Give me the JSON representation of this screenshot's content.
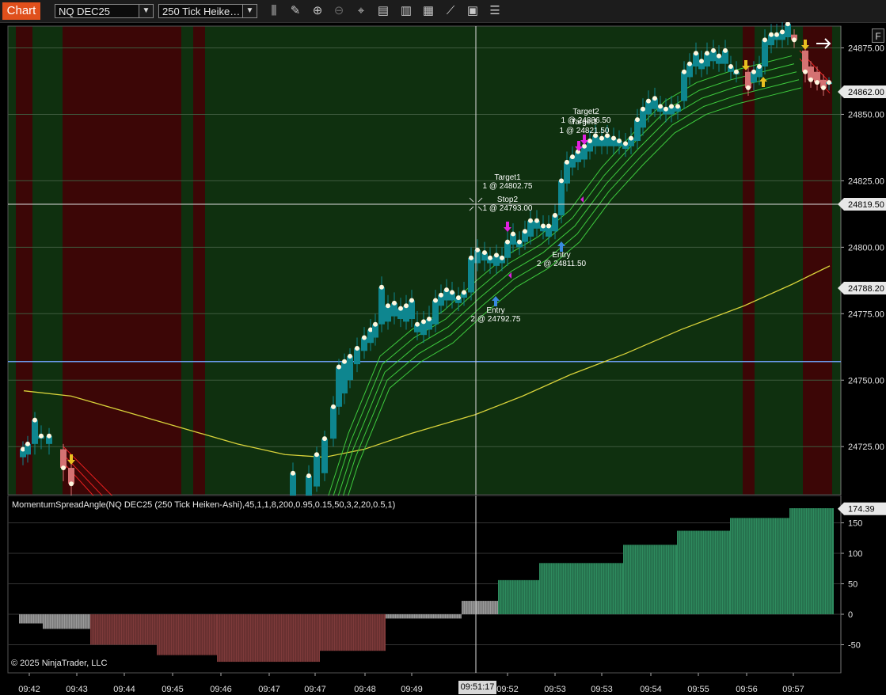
{
  "toolbar": {
    "chart_tab": "Chart",
    "instrument": "NQ DEC25",
    "bar_type": "250 Tick Heike…",
    "icons": [
      "bar-style-icon",
      "draw-tool-icon",
      "zoom-in-icon",
      "zoom-out-icon",
      "crosshair-icon",
      "data-box-icon",
      "indicators-icon",
      "strategies-icon",
      "chart-trader-icon",
      "templates-icon",
      "properties-icon"
    ]
  },
  "colors": {
    "session_green": "#0f300f",
    "session_red": "#3c0606",
    "bull_candle": "#0e868f",
    "bear_candle": "#d47272",
    "ema": "#d8d23a",
    "ribbon": "#3ecb3e",
    "blue_line": "#6c9cf0",
    "osc_bull": "#2e8b5e",
    "osc_bear": "#7e3a3a",
    "osc_neutral": "#9a9a9a"
  },
  "price_axis": {
    "ticks": [
      "24875.00",
      "24850.00",
      "24825.00",
      "24800.00",
      "24775.00",
      "24750.00",
      "24725.00"
    ],
    "last_price": "24862.00",
    "cursor_price": "24819.50",
    "ema_price": "24788.20"
  },
  "time_axis": {
    "ticks": [
      "09:42",
      "09:43",
      "09:44",
      "09:45",
      "09:46",
      "09:47",
      "09:47",
      "09:48",
      "09:49",
      "09:52",
      "09:53",
      "09:53",
      "09:54",
      "09:55",
      "09:56",
      "09:57"
    ],
    "cursor_time": "09:51:17"
  },
  "trade_labels": [
    {
      "title": "Target2",
      "detail": "1 @ 24836.50"
    },
    {
      "title": "Target1",
      "detail": "1 @ 24821.50"
    },
    {
      "title": "Target1",
      "detail": "1 @ 24802.75"
    },
    {
      "title": "Stop2",
      "detail": "1 @ 24793.00"
    },
    {
      "title": "Entry",
      "detail": "2 @ 24811.50"
    },
    {
      "title": "Entry",
      "detail": "2 @ 24792.75"
    }
  ],
  "oscillator": {
    "label": "MomentumSpreadAngle(NQ DEC25 (250 Tick Heiken-Ashi),45,1,1,8,200,0.95,0.15,50,3,2,20,0.5,1)",
    "ticks": [
      "150",
      "100",
      "50",
      "0",
      "-50"
    ],
    "last_value": "174.39"
  },
  "copyright": "© 2025 NinjaTrader, LLC",
  "f_button": "F"
}
